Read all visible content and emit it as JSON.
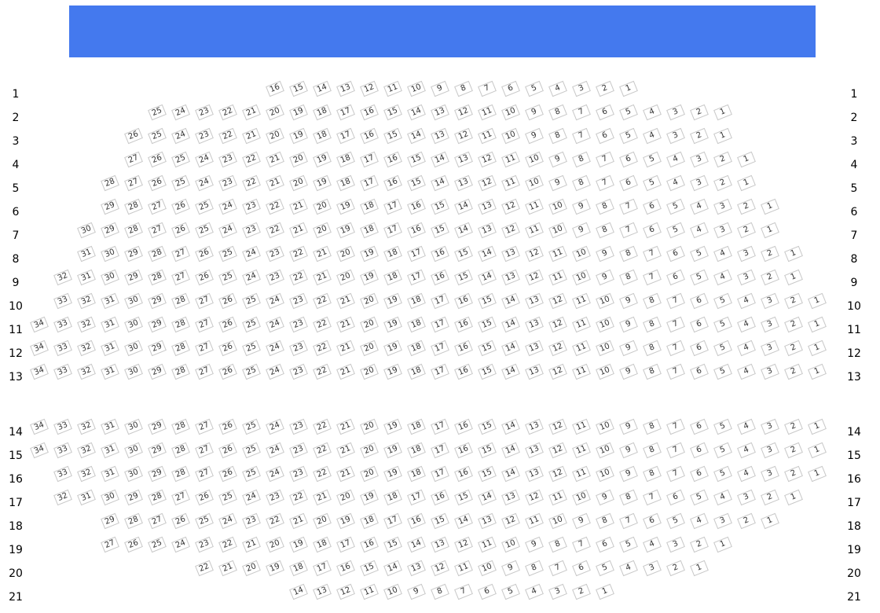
{
  "stage": {
    "color": "#4479ee"
  },
  "rows": [
    {
      "label": "1",
      "seats_from": 16,
      "seats_to": 1
    },
    {
      "label": "2",
      "seats_from": 25,
      "seats_to": 1
    },
    {
      "label": "3",
      "seats_from": 26,
      "seats_to": 1
    },
    {
      "label": "4",
      "seats_from": 27,
      "seats_to": 1
    },
    {
      "label": "5",
      "seats_from": 28,
      "seats_to": 1
    },
    {
      "label": "6",
      "seats_from": 29,
      "seats_to": 1
    },
    {
      "label": "7",
      "seats_from": 30,
      "seats_to": 1
    },
    {
      "label": "8",
      "seats_from": 31,
      "seats_to": 1
    },
    {
      "label": "9",
      "seats_from": 32,
      "seats_to": 1
    },
    {
      "label": "10",
      "seats_from": 33,
      "seats_to": 1
    },
    {
      "label": "11",
      "seats_from": 34,
      "seats_to": 1
    },
    {
      "label": "12",
      "seats_from": 34,
      "seats_to": 1
    },
    {
      "label": "13",
      "seats_from": 34,
      "seats_to": 1
    },
    {
      "label": "14",
      "seats_from": 34,
      "seats_to": 1
    },
    {
      "label": "15",
      "seats_from": 34,
      "seats_to": 1
    },
    {
      "label": "16",
      "seats_from": 33,
      "seats_to": 1
    },
    {
      "label": "17",
      "seats_from": 32,
      "seats_to": 1
    },
    {
      "label": "18",
      "seats_from": 29,
      "seats_to": 1
    },
    {
      "label": "19",
      "seats_from": 27,
      "seats_to": 1
    },
    {
      "label": "20",
      "seats_from": 22,
      "seats_to": 1
    },
    {
      "label": "21",
      "seats_from": 14,
      "seats_to": 1
    }
  ]
}
